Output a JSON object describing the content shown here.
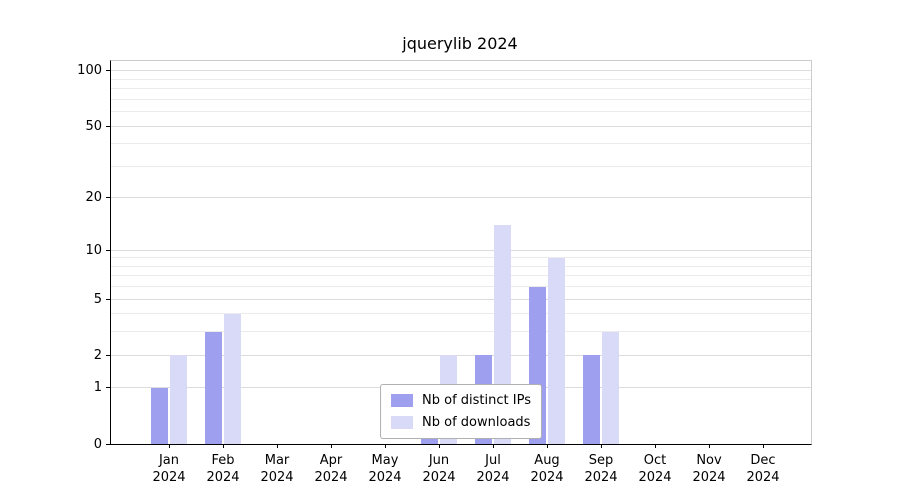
{
  "chart_data": {
    "type": "bar",
    "title": "jquerylib 2024",
    "categories": [
      "Jan 2024",
      "Feb 2024",
      "Mar 2024",
      "Apr 2024",
      "May 2024",
      "Jun 2024",
      "Jul 2024",
      "Aug 2024",
      "Sep 2024",
      "Oct 2024",
      "Nov 2024",
      "Dec 2024"
    ],
    "series": [
      {
        "name": "Nb of distinct IPs",
        "color": "#9f9ff0",
        "values": [
          1,
          3,
          0,
          0,
          0,
          1,
          2,
          6,
          2,
          0,
          0,
          0
        ]
      },
      {
        "name": "Nb of downloads",
        "color": "#d9d9f8",
        "values": [
          2,
          4,
          0,
          0,
          0,
          2,
          14,
          9,
          3,
          0,
          0,
          0
        ]
      }
    ],
    "yscale": "log1p",
    "yticks": [
      0,
      1,
      2,
      5,
      10,
      20,
      50,
      100
    ],
    "minor_gridlines": [
      3,
      4,
      6,
      7,
      8,
      9,
      30,
      40,
      60,
      70,
      80,
      90
    ],
    "ylim": [
      0,
      113
    ],
    "grid": true,
    "legend_position": "lower center"
  }
}
